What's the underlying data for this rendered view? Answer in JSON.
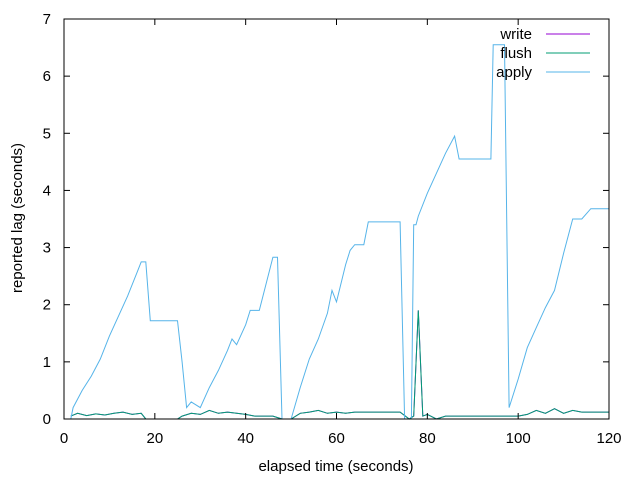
{
  "chart_data": {
    "type": "line",
    "title": "",
    "xlabel": "elapsed time (seconds)",
    "ylabel": "reported lag (seconds)",
    "xlim": [
      0,
      120
    ],
    "ylim": [
      0,
      7
    ],
    "xticks": [
      0,
      20,
      40,
      60,
      80,
      100,
      120
    ],
    "yticks": [
      0,
      1,
      2,
      3,
      4,
      5,
      6,
      7
    ],
    "xtick_labels": [
      "0",
      "20",
      "40",
      "60",
      "80",
      "100",
      "120"
    ],
    "ytick_labels": [
      "0",
      "1",
      "2",
      "3",
      "4",
      "5",
      "6",
      "7"
    ],
    "grid": false,
    "legend_position": "top-right",
    "series": [
      {
        "name": "write",
        "color": "#9400d3",
        "x": [
          1.5,
          3,
          5,
          7,
          9,
          11,
          13,
          15,
          17,
          18,
          20,
          25,
          26,
          28,
          30,
          32,
          34,
          36,
          38,
          40,
          42,
          46,
          48,
          50,
          52,
          54,
          56,
          58,
          60,
          62,
          64,
          66,
          68,
          70,
          74,
          76,
          77,
          78,
          79,
          80,
          82,
          84,
          86,
          90,
          94,
          96,
          98,
          100,
          102,
          104,
          106,
          108,
          110,
          112,
          114,
          120
        ],
        "y": [
          0.05,
          0.1,
          0.06,
          0.09,
          0.07,
          0.1,
          0.12,
          0.08,
          0.1,
          0.0,
          0.0,
          0.0,
          0.05,
          0.1,
          0.08,
          0.15,
          0.1,
          0.12,
          0.1,
          0.08,
          0.05,
          0.05,
          0.0,
          0.0,
          0.1,
          0.12,
          0.15,
          0.1,
          0.12,
          0.1,
          0.12,
          0.12,
          0.12,
          0.12,
          0.12,
          0.0,
          0.05,
          1.9,
          0.05,
          0.08,
          0.0,
          0.05,
          0.05,
          0.05,
          0.05,
          0.05,
          0.05,
          0.05,
          0.08,
          0.15,
          0.1,
          0.18,
          0.1,
          0.15,
          0.12,
          0.12
        ]
      },
      {
        "name": "flush",
        "color": "#009e73",
        "x": [
          1.5,
          3,
          5,
          7,
          9,
          11,
          13,
          15,
          17,
          18,
          20,
          25,
          26,
          28,
          30,
          32,
          34,
          36,
          38,
          40,
          42,
          46,
          48,
          50,
          52,
          54,
          56,
          58,
          60,
          62,
          64,
          66,
          68,
          70,
          74,
          76,
          77,
          78,
          79,
          80,
          82,
          84,
          86,
          90,
          94,
          96,
          98,
          100,
          102,
          104,
          106,
          108,
          110,
          112,
          114,
          120
        ],
        "y": [
          0.05,
          0.1,
          0.06,
          0.09,
          0.07,
          0.1,
          0.12,
          0.08,
          0.1,
          0.0,
          0.0,
          0.0,
          0.05,
          0.1,
          0.08,
          0.15,
          0.1,
          0.12,
          0.1,
          0.08,
          0.05,
          0.05,
          0.0,
          0.0,
          0.1,
          0.12,
          0.15,
          0.1,
          0.12,
          0.1,
          0.12,
          0.12,
          0.12,
          0.12,
          0.12,
          0.0,
          0.05,
          1.9,
          0.05,
          0.08,
          0.0,
          0.05,
          0.05,
          0.05,
          0.05,
          0.05,
          0.05,
          0.05,
          0.08,
          0.15,
          0.1,
          0.18,
          0.1,
          0.15,
          0.12,
          0.12
        ]
      },
      {
        "name": "apply",
        "color": "#56b4e9",
        "x": [
          1.5,
          2,
          4,
          6,
          8,
          10,
          12,
          14,
          16,
          17,
          18,
          19,
          25,
          26,
          27,
          28,
          30,
          32,
          34,
          36,
          37,
          38,
          40,
          41,
          42,
          43,
          46,
          47,
          48,
          49,
          50,
          52,
          54,
          56,
          58,
          59,
          60,
          62,
          63,
          64,
          66,
          67,
          68,
          70,
          73,
          74,
          75,
          76,
          76.5,
          77,
          77.5,
          78,
          80,
          82,
          84,
          86,
          87,
          88,
          90,
          94,
          94.5,
          96,
          97,
          98,
          100,
          102,
          104,
          106,
          108,
          110,
          112,
          114,
          116,
          120
        ],
        "y": [
          0.0,
          0.2,
          0.5,
          0.75,
          1.05,
          1.45,
          1.8,
          2.15,
          2.55,
          2.75,
          2.75,
          1.72,
          1.72,
          1.0,
          0.2,
          0.3,
          0.2,
          0.55,
          0.85,
          1.2,
          1.4,
          1.3,
          1.65,
          1.9,
          1.9,
          1.9,
          2.83,
          2.83,
          0.0,
          0.0,
          0.0,
          0.55,
          1.05,
          1.4,
          1.85,
          2.25,
          2.05,
          2.7,
          2.95,
          3.05,
          3.05,
          3.45,
          3.45,
          3.45,
          3.45,
          3.45,
          0.0,
          0.0,
          0.0,
          3.4,
          3.4,
          3.55,
          3.95,
          4.3,
          4.65,
          4.95,
          4.55,
          4.55,
          4.55,
          4.55,
          6.55,
          6.55,
          6.55,
          0.2,
          0.7,
          1.25,
          1.6,
          1.95,
          2.25,
          2.9,
          3.5,
          3.5,
          3.68,
          3.68
        ]
      }
    ]
  }
}
